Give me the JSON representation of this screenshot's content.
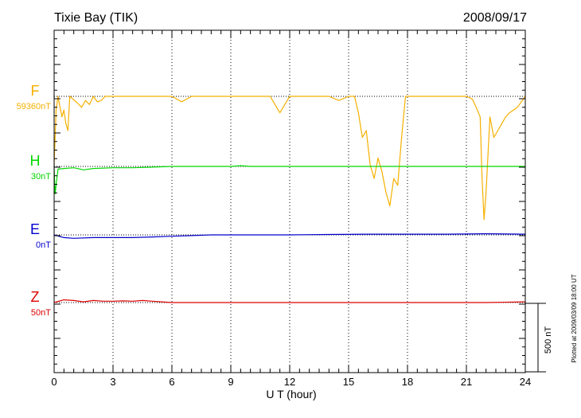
{
  "chart_data": {
    "type": "line",
    "title": "Tixie Bay (TIK)",
    "date": "2008/09/17",
    "xlabel": "U T (hour)",
    "xlim": [
      0,
      24
    ],
    "x_ticks": [
      "0",
      "3",
      "6",
      "9",
      "12",
      "15",
      "18",
      "21",
      "24"
    ],
    "scale_bar": "500 nT",
    "footer": "Plotted at 2009/03/09 18:00 UT",
    "grid": "vertical dotted lines every 3 hours; dotted baseline per series",
    "series": [
      {
        "name": "F",
        "baseline_label": "59360nT",
        "color": "#f5b000",
        "x": [
          0,
          0.1,
          0.2,
          0.3,
          0.4,
          0.5,
          0.6,
          0.7,
          0.8,
          1.2,
          1.4,
          1.6,
          1.8,
          2.0,
          2.2,
          2.4,
          2.6,
          3,
          4,
          5,
          6,
          6.5,
          7,
          8,
          9,
          10,
          11,
          11.5,
          12,
          13,
          14,
          14.5,
          15,
          15.3,
          15.5,
          15.7,
          15.9,
          16.1,
          16.3,
          16.5,
          16.7,
          16.9,
          17.1,
          17.3,
          17.5,
          17.7,
          17.9,
          18,
          19,
          20,
          21,
          21.3,
          21.5,
          21.7,
          21.8,
          21.9,
          22.0,
          22.2,
          22.4,
          22.6,
          22.8,
          23.0,
          23.2,
          23.4,
          23.6,
          24
        ],
        "y": [
          -500,
          -100,
          0,
          -80,
          -150,
          -100,
          -200,
          -250,
          0,
          -50,
          -80,
          -30,
          -60,
          0,
          -40,
          -30,
          0,
          0,
          0,
          0,
          0,
          -40,
          0,
          0,
          0,
          0,
          0,
          -120,
          0,
          0,
          0,
          -30,
          0,
          0,
          -120,
          -300,
          -250,
          -500,
          -600,
          -450,
          -550,
          -700,
          -800,
          -600,
          -650,
          -300,
          0,
          0,
          0,
          0,
          0,
          -20,
          -80,
          -150,
          -600,
          -900,
          -700,
          -150,
          -300,
          -250,
          -200,
          -150,
          -120,
          -100,
          -80,
          0
        ]
      },
      {
        "name": "H",
        "baseline_label": "30nT",
        "color": "#00d800",
        "x": [
          0,
          0.05,
          0.2,
          0.5,
          1,
          1.5,
          2,
          3,
          4,
          5,
          6,
          7,
          8,
          9,
          9.5,
          10,
          12,
          14,
          16,
          18,
          20,
          22,
          24
        ],
        "y": [
          -10,
          -200,
          -20,
          -15,
          -10,
          -25,
          -15,
          -10,
          -10,
          -5,
          0,
          0,
          0,
          0,
          5,
          0,
          0,
          0,
          0,
          0,
          0,
          0,
          0
        ]
      },
      {
        "name": "E",
        "baseline_label": "0nT",
        "color": "#0000cc",
        "x": [
          0,
          0.5,
          1,
          2,
          3,
          4,
          5,
          6,
          7,
          8,
          9,
          10,
          12,
          14,
          16,
          18,
          20,
          22,
          24
        ],
        "y": [
          0,
          -20,
          -25,
          -20,
          -20,
          -20,
          -15,
          -10,
          -5,
          0,
          0,
          0,
          0,
          3,
          5,
          5,
          5,
          8,
          5
        ]
      },
      {
        "name": "Z",
        "baseline_label": "50nT",
        "color": "#dd0000",
        "x": [
          0,
          0.5,
          1,
          1.5,
          2,
          2.5,
          3,
          3.5,
          4,
          4.5,
          5,
          6,
          7,
          8,
          10,
          12,
          14,
          16,
          18,
          20,
          22,
          24
        ],
        "y": [
          0,
          20,
          15,
          5,
          15,
          10,
          10,
          12,
          10,
          15,
          10,
          0,
          0,
          0,
          0,
          0,
          0,
          0,
          0,
          0,
          0,
          5
        ]
      }
    ]
  }
}
